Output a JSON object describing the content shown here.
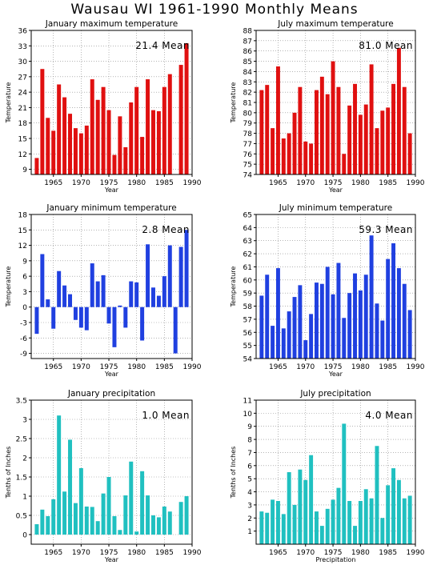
{
  "page": {
    "title": "Wausau WI   1961-1990 Monthly Means"
  },
  "chart_data": [
    {
      "type": "bar",
      "title": "January maximum temperature",
      "xlabel": "Year",
      "ylabel": "Temperature",
      "mean_label": "21.4 Mean",
      "color": "#e01010",
      "years": [
        1962,
        1963,
        1964,
        1965,
        1966,
        1967,
        1968,
        1969,
        1970,
        1971,
        1972,
        1973,
        1974,
        1975,
        1976,
        1977,
        1978,
        1979,
        1980,
        1981,
        1982,
        1983,
        1984,
        1985,
        1986,
        1987,
        1988,
        1989,
        1990
      ],
      "values": [
        11.2,
        28.5,
        19.0,
        16.5,
        25.5,
        23.0,
        19.8,
        17.0,
        16.0,
        17.5,
        26.5,
        22.5,
        25.0,
        20.5,
        11.8,
        19.3,
        13.3,
        22.0,
        25.0,
        15.3,
        26.5,
        20.5,
        20.3,
        25.0,
        27.5,
        8.0,
        29.3,
        33.5,
        null
      ],
      "xlim": [
        1961,
        1990
      ],
      "ylim": [
        8,
        36
      ],
      "yticks": [
        9,
        12,
        15,
        18,
        21,
        24,
        27,
        30,
        33,
        36
      ],
      "xticks": [
        1965,
        1970,
        1975,
        1980,
        1985,
        1990
      ],
      "grid": true
    },
    {
      "type": "bar",
      "title": "July maximum temperature",
      "xlabel": "Year",
      "ylabel": "Temperature",
      "mean_label": "81.0 Mean",
      "color": "#e01010",
      "years": [
        1962,
        1963,
        1964,
        1965,
        1966,
        1967,
        1968,
        1969,
        1970,
        1971,
        1972,
        1973,
        1974,
        1975,
        1976,
        1977,
        1978,
        1979,
        1980,
        1981,
        1982,
        1983,
        1984,
        1985,
        1986,
        1987,
        1988,
        1989,
        1990
      ],
      "values": [
        82.2,
        82.7,
        78.5,
        84.5,
        77.5,
        78.0,
        80.0,
        82.5,
        77.2,
        77.0,
        82.2,
        83.5,
        81.8,
        85.0,
        82.5,
        76.0,
        80.7,
        82.8,
        79.8,
        80.8,
        84.7,
        78.5,
        80.2,
        80.5,
        82.8,
        86.3,
        82.5,
        78.0,
        null
      ],
      "xlim": [
        1961,
        1990
      ],
      "ylim": [
        74,
        88
      ],
      "yticks": [
        74,
        75,
        76,
        77,
        78,
        79,
        80,
        81,
        82,
        83,
        84,
        85,
        86,
        87,
        88
      ],
      "xticks": [
        1965,
        1970,
        1975,
        1980,
        1985,
        1990
      ],
      "grid": true
    },
    {
      "type": "bar",
      "title": "January minimum temperature",
      "xlabel": "Year",
      "ylabel": "Temperature",
      "mean_label": "2.8 Mean",
      "color": "#2040e0",
      "years": [
        1962,
        1963,
        1964,
        1965,
        1966,
        1967,
        1968,
        1969,
        1970,
        1971,
        1972,
        1973,
        1974,
        1975,
        1976,
        1977,
        1978,
        1979,
        1980,
        1981,
        1982,
        1983,
        1984,
        1985,
        1986,
        1987,
        1988,
        1989,
        1990
      ],
      "values": [
        -5.2,
        10.3,
        1.5,
        -4.2,
        7.0,
        4.2,
        2.5,
        -2.5,
        -4.0,
        -4.5,
        8.5,
        5.0,
        6.2,
        -3.2,
        -7.8,
        0.3,
        -4.0,
        5.0,
        4.8,
        -6.5,
        12.2,
        3.8,
        2.2,
        6.0,
        12.0,
        -9.0,
        11.7,
        15.0,
        null
      ],
      "xlim": [
        1961,
        1990
      ],
      "ylim": [
        -10,
        18
      ],
      "yticks": [
        -9,
        -6,
        -3,
        0,
        3,
        6,
        9,
        12,
        15,
        18
      ],
      "xticks": [
        1965,
        1970,
        1975,
        1980,
        1985,
        1990
      ],
      "grid": true
    },
    {
      "type": "bar",
      "title": "July minimum temperature",
      "xlabel": "Year",
      "ylabel": "Temperature",
      "mean_label": "59.3 Mean",
      "color": "#2040e0",
      "years": [
        1962,
        1963,
        1964,
        1965,
        1966,
        1967,
        1968,
        1969,
        1970,
        1971,
        1972,
        1973,
        1974,
        1975,
        1976,
        1977,
        1978,
        1979,
        1980,
        1981,
        1982,
        1983,
        1984,
        1985,
        1986,
        1987,
        1988,
        1989,
        1990
      ],
      "values": [
        58.8,
        60.4,
        56.5,
        60.9,
        56.3,
        57.6,
        58.7,
        59.6,
        55.4,
        57.4,
        59.8,
        59.7,
        61.0,
        58.9,
        61.3,
        57.1,
        59.0,
        60.5,
        59.2,
        60.4,
        63.4,
        58.2,
        56.9,
        61.6,
        62.8,
        60.9,
        59.7,
        57.7,
        null
      ],
      "xlim": [
        1961,
        1990
      ],
      "ylim": [
        54,
        65
      ],
      "yticks": [
        54,
        55,
        56,
        57,
        58,
        59,
        60,
        61,
        62,
        63,
        64,
        65
      ],
      "xticks": [
        1965,
        1970,
        1975,
        1980,
        1985,
        1990
      ],
      "grid": true
    },
    {
      "type": "bar",
      "title": "January precipitation",
      "xlabel": "Year",
      "ylabel": "Tenths of Inches",
      "mean_label": "1.0 Mean",
      "color": "#20c0c0",
      "years": [
        1962,
        1963,
        1964,
        1965,
        1966,
        1967,
        1968,
        1969,
        1970,
        1971,
        1972,
        1973,
        1974,
        1975,
        1976,
        1977,
        1978,
        1979,
        1980,
        1981,
        1982,
        1983,
        1984,
        1985,
        1986,
        1987,
        1988,
        1989,
        1990
      ],
      "values": [
        0.27,
        0.65,
        0.48,
        0.92,
        3.1,
        1.12,
        2.47,
        0.82,
        1.73,
        0.73,
        0.72,
        0.35,
        1.07,
        1.5,
        0.48,
        0.12,
        1.02,
        1.9,
        0.08,
        1.65,
        1.02,
        0.5,
        0.45,
        0.73,
        0.6,
        0.0,
        0.85,
        1.0,
        null
      ],
      "xlim": [
        1961,
        1990
      ],
      "ylim": [
        -0.25,
        3.5
      ],
      "yticks": [
        0,
        0.5,
        1,
        1.5,
        2,
        2.5,
        3,
        3.5
      ],
      "ytick_labels": [
        "0",
        "0.5",
        "1",
        "1.5",
        "2",
        "2.5",
        "3",
        "3.5"
      ],
      "xticks": [
        1965,
        1970,
        1975,
        1980,
        1985,
        1990
      ],
      "grid": true
    },
    {
      "type": "bar",
      "title": "July precipitation",
      "xlabel": "Precipitation",
      "ylabel": "Tenths of Inches",
      "mean_label": "4.0 Mean",
      "color": "#20c0c0",
      "years": [
        1962,
        1963,
        1964,
        1965,
        1966,
        1967,
        1968,
        1969,
        1970,
        1971,
        1972,
        1973,
        1974,
        1975,
        1976,
        1977,
        1978,
        1979,
        1980,
        1981,
        1982,
        1983,
        1984,
        1985,
        1986,
        1987,
        1988,
        1989,
        1990
      ],
      "values": [
        2.5,
        2.4,
        3.4,
        3.3,
        2.3,
        5.5,
        3.0,
        5.7,
        4.9,
        6.8,
        2.5,
        1.4,
        2.7,
        3.4,
        4.3,
        9.2,
        3.3,
        1.4,
        3.3,
        4.2,
        3.5,
        7.5,
        2.0,
        4.5,
        5.8,
        4.9,
        3.5,
        3.7,
        null
      ],
      "xlim": [
        1961,
        1990
      ],
      "ylim": [
        0,
        11
      ],
      "yticks": [
        1,
        2,
        3,
        4,
        5,
        6,
        7,
        8,
        9,
        10,
        11
      ],
      "xticks": [
        1965,
        1970,
        1975,
        1980,
        1985,
        1990
      ],
      "grid": true
    }
  ]
}
